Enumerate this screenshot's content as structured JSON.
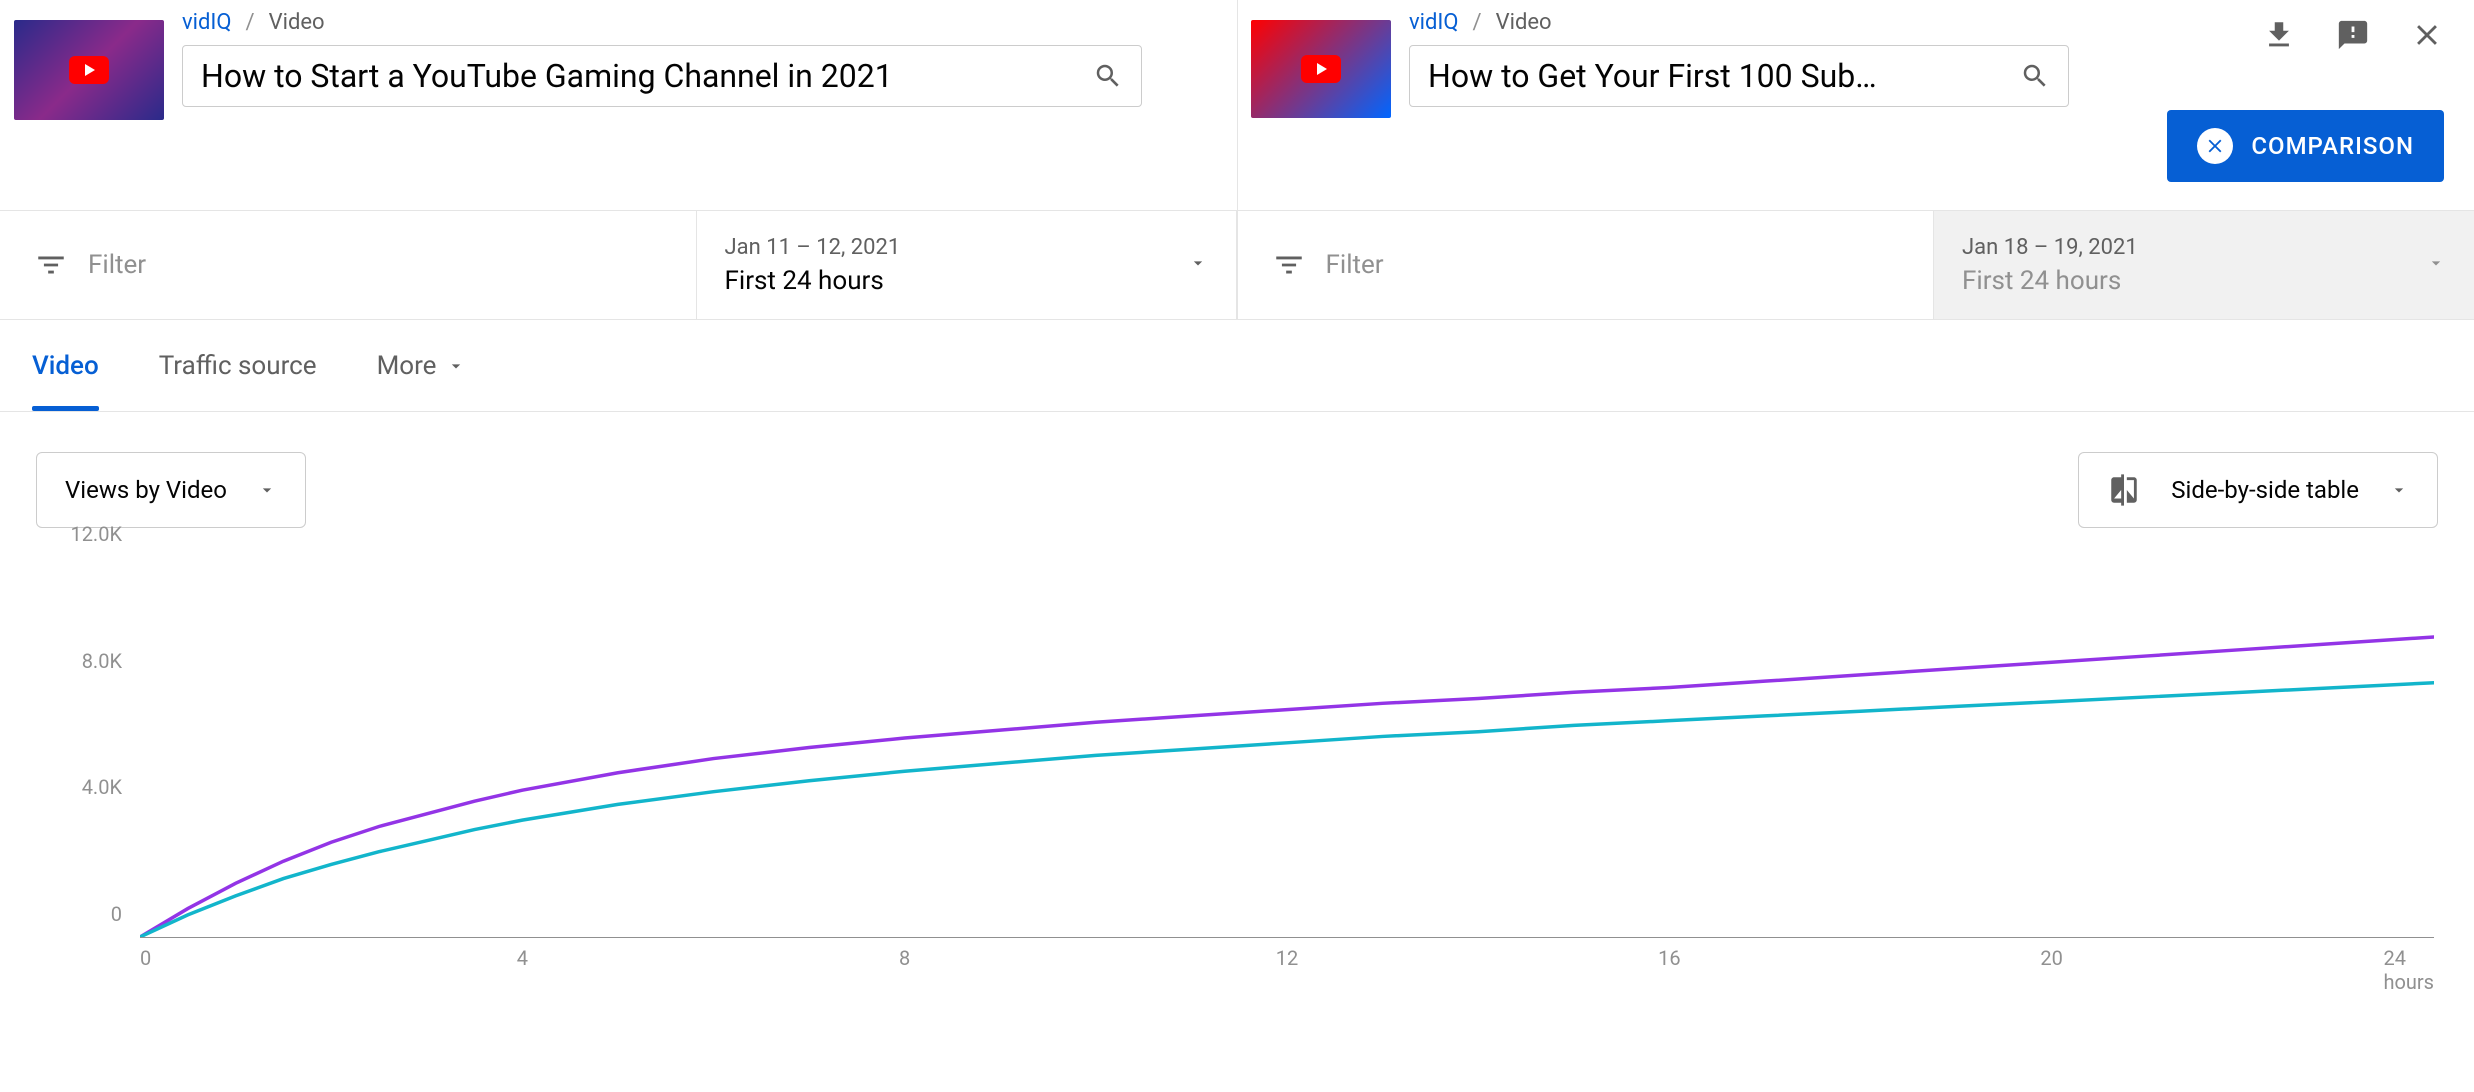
{
  "top_actions": {
    "download": "download-icon",
    "feedback": "feedback-icon",
    "close": "close-icon"
  },
  "left_panel": {
    "breadcrumb_link": "vidIQ",
    "breadcrumb_sep": "/",
    "breadcrumb_page": "Video",
    "search_title": "How to Start a YouTube Gaming Channel in 2021",
    "filter_label": "Filter",
    "date_range": "Jan 11 – 12, 2021",
    "date_period": "First 24 hours"
  },
  "right_panel": {
    "breadcrumb_link": "vidIQ",
    "breadcrumb_sep": "/",
    "breadcrumb_page": "Video",
    "search_title": "How to Get Your First 100 Sub…",
    "filter_label": "Filter",
    "date_range": "Jan 18 – 19, 2021",
    "date_period": "First 24 hours"
  },
  "comparison_button": "COMPARISON",
  "tabs": {
    "video": "Video",
    "traffic": "Traffic source",
    "more": "More"
  },
  "controls": {
    "metric_dropdown": "Views by Video",
    "table_dropdown": "Side-by-side table"
  },
  "chart": {
    "type": "line",
    "y_ticks": [
      {
        "value": 0,
        "label": "0"
      },
      {
        "value": 4000,
        "label": "4.0K"
      },
      {
        "value": 8000,
        "label": "8.0K"
      },
      {
        "value": 12000,
        "label": "12.0K"
      }
    ],
    "ylim": [
      0,
      12000
    ],
    "x_ticks": [
      {
        "value": 0,
        "label": "0"
      },
      {
        "value": 4,
        "label": "4"
      },
      {
        "value": 8,
        "label": "8"
      },
      {
        "value": 12,
        "label": "12"
      },
      {
        "value": 16,
        "label": "16"
      },
      {
        "value": 20,
        "label": "20"
      },
      {
        "value": 24,
        "label": "24 hours"
      }
    ],
    "xlim": [
      0,
      24
    ],
    "axis_color": "#909090",
    "grid_color": "#e0e0e0",
    "background_color": "#ffffff",
    "line_width": 3.5,
    "series": [
      {
        "name": "purple-series",
        "color": "#9334e6",
        "data": [
          [
            0,
            0
          ],
          [
            0.5,
            900
          ],
          [
            1,
            1700
          ],
          [
            1.5,
            2400
          ],
          [
            2,
            3000
          ],
          [
            2.5,
            3500
          ],
          [
            3,
            3900
          ],
          [
            3.5,
            4300
          ],
          [
            4,
            4650
          ],
          [
            5,
            5200
          ],
          [
            6,
            5650
          ],
          [
            7,
            6000
          ],
          [
            8,
            6300
          ],
          [
            9,
            6550
          ],
          [
            10,
            6800
          ],
          [
            11,
            7000
          ],
          [
            12,
            7200
          ],
          [
            13,
            7400
          ],
          [
            14,
            7550
          ],
          [
            15,
            7750
          ],
          [
            16,
            7900
          ],
          [
            17,
            8100
          ],
          [
            18,
            8300
          ],
          [
            19,
            8500
          ],
          [
            20,
            8700
          ],
          [
            21,
            8900
          ],
          [
            22,
            9100
          ],
          [
            23,
            9300
          ],
          [
            24,
            9500
          ]
        ]
      },
      {
        "name": "teal-series",
        "color": "#12b5cb",
        "data": [
          [
            0,
            0
          ],
          [
            0.5,
            700
          ],
          [
            1,
            1300
          ],
          [
            1.5,
            1850
          ],
          [
            2,
            2300
          ],
          [
            2.5,
            2700
          ],
          [
            3,
            3050
          ],
          [
            3.5,
            3400
          ],
          [
            4,
            3700
          ],
          [
            5,
            4200
          ],
          [
            6,
            4600
          ],
          [
            7,
            4950
          ],
          [
            8,
            5250
          ],
          [
            9,
            5500
          ],
          [
            10,
            5750
          ],
          [
            11,
            5950
          ],
          [
            12,
            6150
          ],
          [
            13,
            6350
          ],
          [
            14,
            6500
          ],
          [
            15,
            6700
          ],
          [
            16,
            6850
          ],
          [
            17,
            7000
          ],
          [
            18,
            7150
          ],
          [
            19,
            7300
          ],
          [
            20,
            7450
          ],
          [
            21,
            7600
          ],
          [
            22,
            7750
          ],
          [
            23,
            7900
          ],
          [
            24,
            8050
          ]
        ]
      }
    ]
  },
  "colors": {
    "link": "#065fd4",
    "text_primary": "#030303",
    "text_secondary": "#606060",
    "text_muted": "#909090",
    "border": "#e5e5e5",
    "button_primary": "#065fd4"
  }
}
